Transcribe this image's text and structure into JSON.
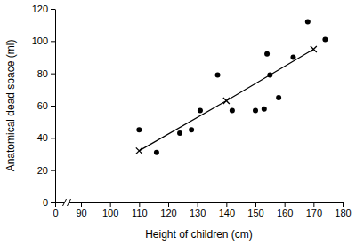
{
  "chart_data": {
    "type": "scatter",
    "x_label": "Height of children (cm)",
    "y_label": "Anatomical dead space (ml)",
    "xlim": [
      0,
      180
    ],
    "xticks": [
      0,
      90,
      100,
      110,
      120,
      130,
      140,
      150,
      160,
      170,
      180
    ],
    "ylim": [
      0,
      120
    ],
    "yticks": [
      0,
      20,
      40,
      60,
      80,
      100,
      120
    ],
    "grid": false,
    "series": [
      {
        "type": "scatter",
        "marker": "circle",
        "color": "#000000",
        "x": [
          110,
          116,
          124,
          128,
          131,
          137,
          142,
          150,
          153,
          154,
          155,
          158,
          163,
          168,
          174
        ],
        "values": [
          45,
          31,
          43,
          45,
          57,
          79,
          57,
          57,
          58,
          92,
          79,
          65,
          90,
          112,
          101
        ]
      },
      {
        "type": "line",
        "marker": "x",
        "line_style": "solid",
        "color": "#000000",
        "x": [
          110,
          140,
          170
        ],
        "values": [
          32,
          63,
          95
        ]
      }
    ]
  }
}
